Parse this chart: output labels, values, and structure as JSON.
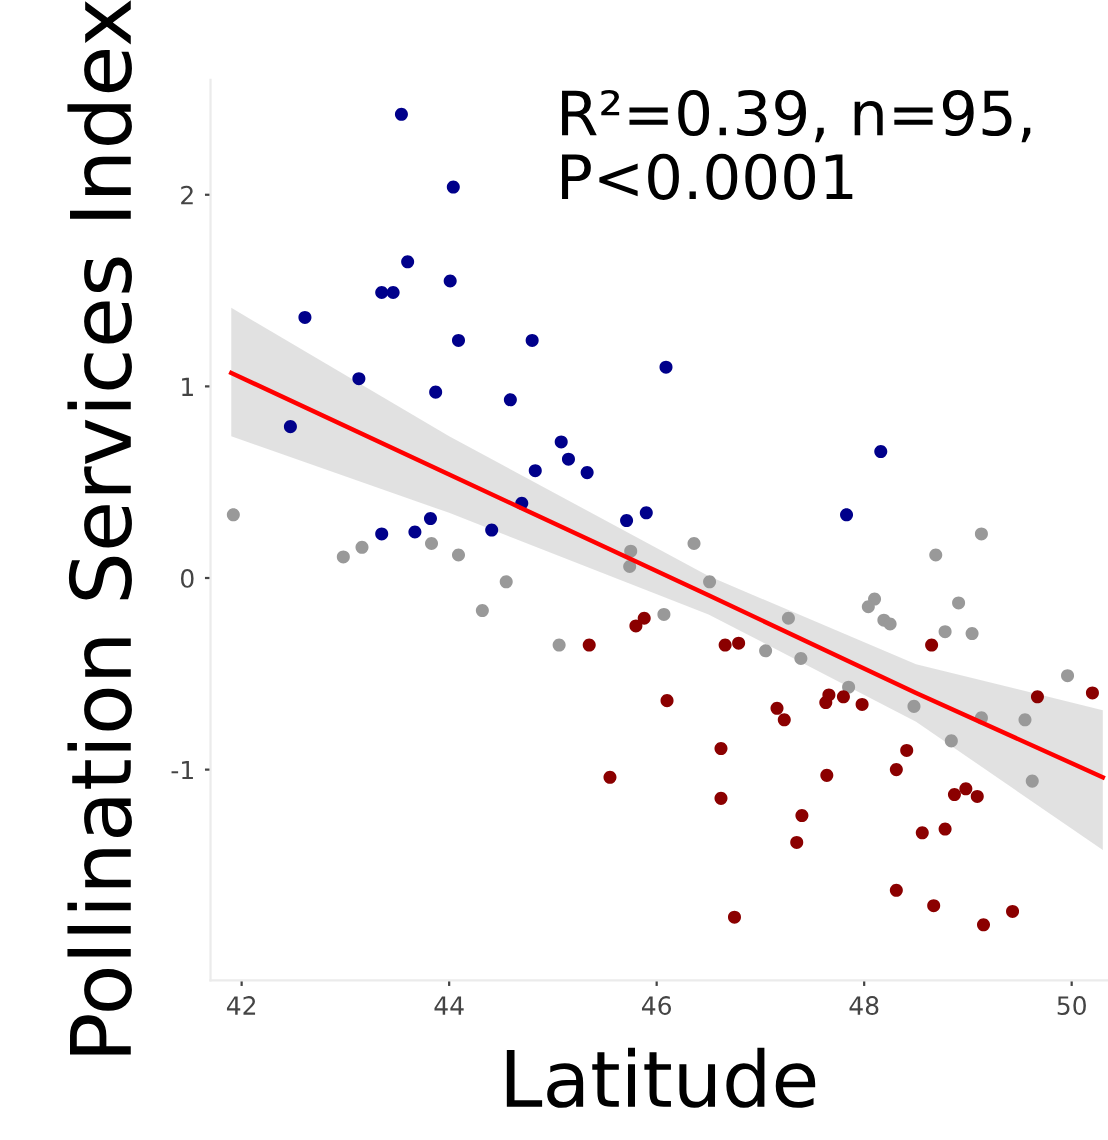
{
  "chart_data": {
    "type": "scatter",
    "xlabel": "Latitude",
    "ylabel": "Pollination Services Index",
    "annotations": [
      "R²=0.39, n=95,\nP<0.0001"
    ],
    "xlim": [
      41.7,
      50.35
    ],
    "ylim": [
      -2.1,
      2.6
    ],
    "xticks": [
      42,
      44,
      46,
      48,
      50
    ],
    "yticks": [
      -1,
      0,
      1,
      2
    ],
    "grid": false,
    "series": [
      {
        "marker": "circle",
        "color": "#00008b",
        "x": [
          43.54,
          44.04,
          43.6,
          43.35,
          43.46,
          44.01,
          42.61,
          44.09,
          44.8,
          43.13,
          43.87,
          44.59,
          42.47,
          45.08,
          45.15,
          45.33,
          44.83,
          44.7,
          45.71,
          43.82,
          43.35,
          43.67,
          44.41,
          46.09,
          48.16,
          47.83,
          45.9
        ],
        "values": [
          2.42,
          2.04,
          1.65,
          1.49,
          1.49,
          1.55,
          1.36,
          1.24,
          1.24,
          1.04,
          0.97,
          0.93,
          0.79,
          0.71,
          0.62,
          0.55,
          0.56,
          0.39,
          0.3,
          0.31,
          0.23,
          0.24,
          0.25,
          1.1,
          0.66,
          0.33,
          0.34
        ]
      },
      {
        "marker": "circle",
        "color": "#999999",
        "x": [
          41.92,
          43.16,
          42.98,
          43.83,
          44.09,
          44.55,
          44.32,
          45.06,
          45.75,
          45.74,
          46.36,
          46.51,
          46.07,
          47.27,
          48.1,
          48.04,
          48.19,
          48.25,
          48.69,
          49.13,
          48.91,
          48.78,
          49.04,
          47.05,
          47.39,
          47.85,
          48.48,
          49.13,
          48.84,
          49.55,
          49.62,
          49.96
        ],
        "values": [
          0.33,
          0.16,
          0.11,
          0.18,
          0.12,
          -0.02,
          -0.17,
          -0.35,
          0.14,
          0.06,
          0.18,
          -0.02,
          -0.19,
          -0.21,
          -0.11,
          -0.15,
          -0.22,
          -0.24,
          0.12,
          0.23,
          -0.13,
          -0.28,
          -0.29,
          -0.38,
          -0.42,
          -0.57,
          -0.67,
          -0.73,
          -0.85,
          -0.74,
          -1.06,
          -0.51
        ]
      },
      {
        "marker": "circle",
        "color": "#8b0000",
        "x": [
          45.8,
          45.88,
          46.66,
          46.79,
          46.1,
          47.16,
          47.23,
          47.63,
          47.66,
          47.8,
          47.98,
          48.65,
          49.67,
          46.62,
          45.55,
          47.64,
          48.41,
          48.31,
          46.62,
          48.87,
          48.98,
          49.09,
          47.4,
          47.35,
          48.56,
          48.78,
          48.31,
          48.67,
          49.43,
          49.15,
          46.75,
          45.35,
          50.2
        ],
        "values": [
          -0.25,
          -0.21,
          -0.35,
          -0.34,
          -0.64,
          -0.68,
          -0.74,
          -0.65,
          -0.61,
          -0.62,
          -0.66,
          -0.35,
          -0.62,
          -0.89,
          -1.04,
          -1.03,
          -0.9,
          -1.0,
          -1.15,
          -1.13,
          -1.1,
          -1.14,
          -1.24,
          -1.38,
          -1.33,
          -1.31,
          -1.63,
          -1.71,
          -1.74,
          -1.81,
          -1.77,
          -0.35,
          -0.6
        ]
      },
      {
        "type": "line",
        "color": "#ff0000",
        "x": [
          41.9,
          44,
          46.5,
          48.5,
          50.3
        ],
        "values": [
          1.07,
          0.54,
          -0.09,
          -0.6,
          -1.04
        ],
        "lower": [
          0.74,
          0.34,
          -0.19,
          -0.75,
          -1.42
        ],
        "upper": [
          1.41,
          0.74,
          0.01,
          -0.45,
          -0.69
        ]
      }
    ]
  }
}
